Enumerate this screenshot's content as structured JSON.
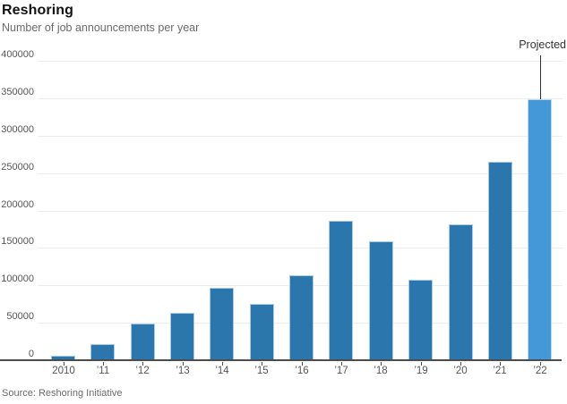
{
  "chart_data": {
    "type": "bar",
    "title": "Reshoring",
    "subtitle": "Number of job announcements per year",
    "source": "Source: Reshoring Initiative",
    "categories": [
      "2010",
      "’11",
      "’12",
      "’13",
      "’14",
      "’15",
      "’16",
      "’17",
      "’18",
      "’19",
      "’20",
      "’21",
      "’22"
    ],
    "values": [
      6000,
      22000,
      49000,
      63000,
      97000,
      75000,
      114000,
      186000,
      159000,
      108000,
      181000,
      265000,
      349000
    ],
    "projected_index": 12,
    "projected_label": "Projected",
    "ylim": [
      0,
      400000
    ],
    "ytick_step": 50000,
    "yticks": [
      "0",
      "50000",
      "100000",
      "150000",
      "200000",
      "250000",
      "300000",
      "350000",
      "400000"
    ],
    "grid": "horizontal",
    "legend": "none",
    "colors": {
      "bar": "#2b77ad",
      "bar_projected": "#4498d8",
      "bar_edge": "#a9cce6",
      "bar_projected_edge": "#bcdcf2",
      "gridline": "#ececec",
      "axis": "#4d4d4d",
      "annotation_line": "#333333"
    }
  }
}
